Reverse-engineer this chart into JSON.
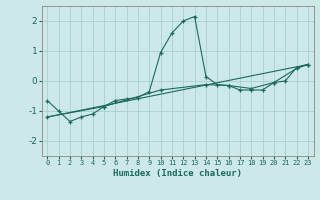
{
  "xlabel": "Humidex (Indice chaleur)",
  "x_ticks": [
    0,
    1,
    2,
    3,
    4,
    5,
    6,
    7,
    8,
    9,
    10,
    11,
    12,
    13,
    14,
    15,
    16,
    17,
    18,
    19,
    20,
    21,
    22,
    23
  ],
  "ylim": [
    -2.5,
    2.5
  ],
  "xlim": [
    -0.5,
    23.5
  ],
  "yticks": [
    -2,
    -1,
    0,
    1,
    2
  ],
  "bg_color": "#cce8e8",
  "grid_color": "#aacfcf",
  "line_color": "#1a6b5a",
  "line1_x": [
    0,
    1,
    2,
    3,
    4,
    5,
    6,
    7,
    8,
    9,
    10,
    11,
    12,
    13,
    14,
    15,
    16,
    17,
    18,
    19,
    20,
    21,
    22,
    23
  ],
  "line1_y": [
    -0.65,
    -1.0,
    -1.35,
    -1.2,
    -1.1,
    -0.85,
    -0.65,
    -0.6,
    -0.55,
    -0.35,
    0.95,
    1.6,
    2.0,
    2.15,
    0.15,
    -0.12,
    -0.15,
    -0.3,
    -0.3,
    -0.3,
    -0.05,
    0.0,
    0.45,
    0.55
  ],
  "line2_x": [
    0,
    23
  ],
  "line2_y": [
    -1.2,
    0.55
  ],
  "line3_x": [
    0,
    5,
    10,
    14,
    16,
    18,
    20,
    22,
    23
  ],
  "line3_y": [
    -1.2,
    -0.85,
    -0.3,
    -0.12,
    -0.15,
    -0.25,
    -0.05,
    0.42,
    0.55
  ]
}
